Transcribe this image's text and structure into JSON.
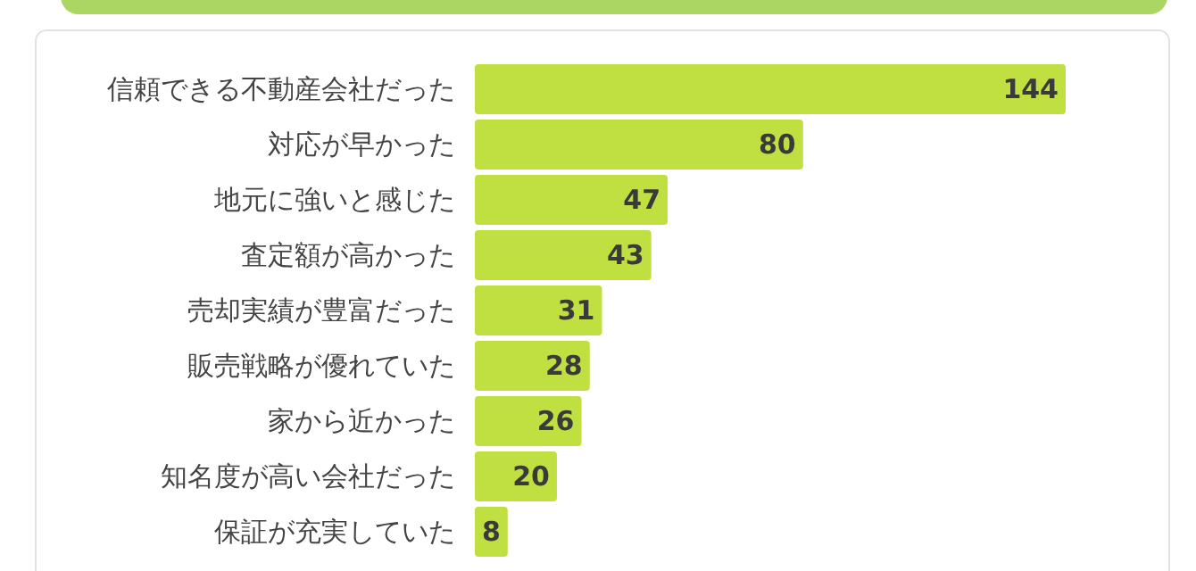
{
  "chart_data": {
    "type": "bar",
    "orientation": "horizontal",
    "data_labels": true,
    "color": "#c0df40",
    "categories": [
      "信頼できる不動産会社だった",
      "対応が早かった",
      "地元に強いと感じた",
      "査定額が高かった",
      "売却実績が豊富だった",
      "販売戦略が優れていた",
      "家から近かった",
      "知名度が高い会社だった",
      "保証が充実していた"
    ],
    "values": [
      144,
      80,
      47,
      43,
      31,
      28,
      26,
      20,
      8
    ]
  }
}
